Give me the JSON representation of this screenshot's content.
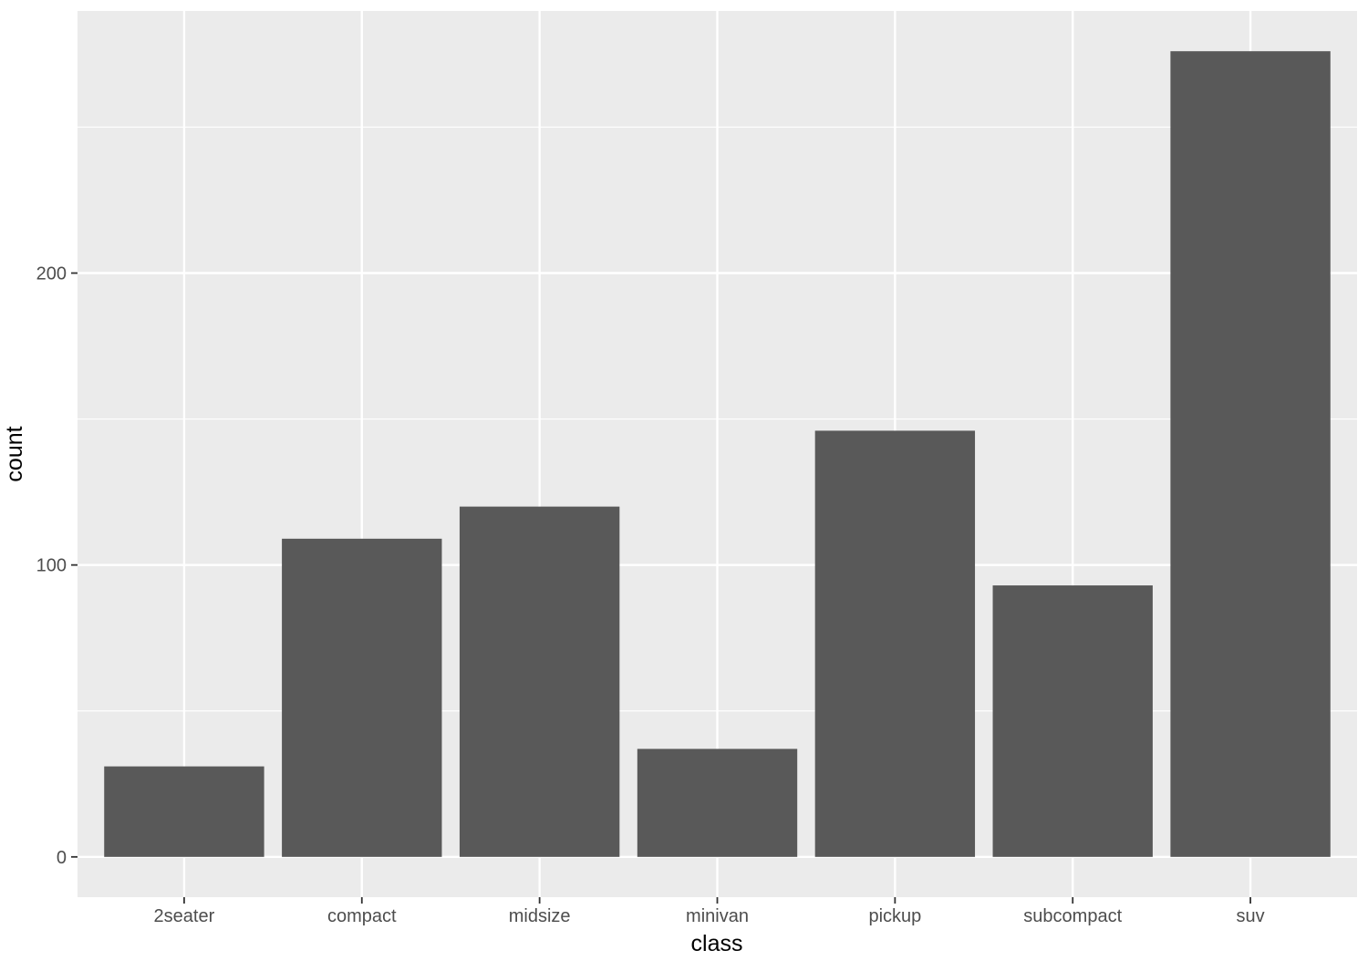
{
  "chart_data": {
    "type": "bar",
    "categories": [
      "2seater",
      "compact",
      "midsize",
      "minivan",
      "pickup",
      "subcompact",
      "suv"
    ],
    "values": [
      31,
      109,
      120,
      37,
      146,
      93,
      276
    ],
    "title": "",
    "xlabel": "class",
    "ylabel": "count",
    "ylim": [
      -13.8,
      289.8
    ],
    "yticks": [
      0,
      100,
      200
    ],
    "grid": true,
    "colors": {
      "panel": "#ebebeb",
      "bar": "#595959",
      "grid": "#ffffff",
      "tick": "#333333"
    }
  }
}
